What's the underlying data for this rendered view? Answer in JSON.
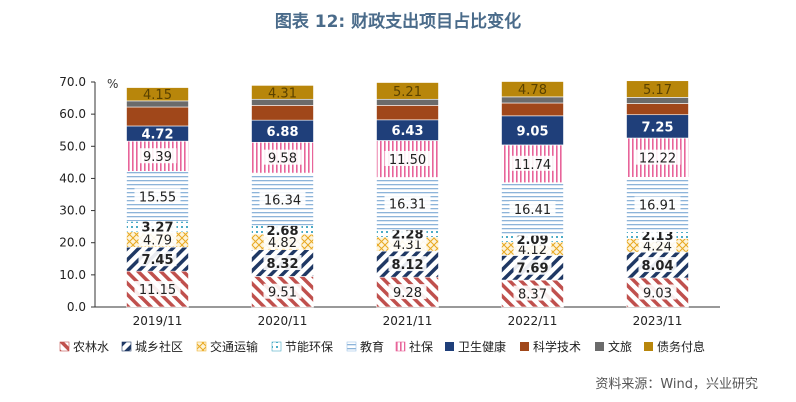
{
  "chart_data": {
    "type": "bar",
    "stacked": true,
    "title": "图表 12: 财政支出项目占比变化",
    "ylabel": "%",
    "ylim": [
      0,
      70
    ],
    "yticks": [
      "0.0",
      "10.0",
      "20.0",
      "30.0",
      "40.0",
      "50.0",
      "60.0",
      "70.0"
    ],
    "categories": [
      "2019/11",
      "2020/11",
      "2021/11",
      "2022/11",
      "2023/11"
    ],
    "legend_position": "bottom",
    "grid": false,
    "series": [
      {
        "name": "农林水",
        "color": "#c0504d",
        "pattern": "diag-red",
        "values": [
          11.15,
          9.51,
          9.28,
          8.37,
          9.03
        ],
        "labels": [
          "11.15",
          "9.51",
          "9.28",
          "8.37",
          "9.03"
        ]
      },
      {
        "name": "城乡社区",
        "color": "#1f3864",
        "pattern": "diag-navy",
        "values": [
          7.45,
          8.32,
          8.12,
          7.69,
          8.04
        ],
        "labels": [
          "7.45",
          "8.32",
          "8.12",
          "7.69",
          "8.04"
        ]
      },
      {
        "name": "交通运输",
        "color": "#f0b840",
        "pattern": "cross-gold",
        "values": [
          4.79,
          4.82,
          4.31,
          4.12,
          4.24
        ],
        "labels": [
          "4.79",
          "4.82",
          "4.31",
          "4.12",
          "4.24"
        ]
      },
      {
        "name": "节能环保",
        "color": "#4bacc6",
        "pattern": "dots-cyan",
        "values": [
          3.27,
          2.68,
          2.28,
          2.09,
          2.13
        ],
        "labels": [
          "3.27",
          "2.68",
          "2.28",
          "2.09",
          "2.13"
        ]
      },
      {
        "name": "教育",
        "color": "#9dc3e6",
        "pattern": "hlines-blue",
        "values": [
          15.55,
          16.34,
          16.31,
          16.41,
          16.91
        ],
        "labels": [
          "15.55",
          "16.34",
          "16.31",
          "16.41",
          "16.91"
        ]
      },
      {
        "name": "社保",
        "color": "#e8649a",
        "pattern": "vlines-pink",
        "values": [
          9.39,
          9.58,
          11.5,
          11.74,
          12.22
        ],
        "labels": [
          "9.39",
          "9.58",
          "11.50",
          "11.74",
          "12.22"
        ]
      },
      {
        "name": "卫生健康",
        "color": "#1f3f7a",
        "pattern": "solid",
        "values": [
          4.72,
          6.88,
          6.43,
          9.05,
          7.25
        ],
        "labels": [
          "4.72",
          "6.88",
          "6.43",
          "9.05",
          "7.25"
        ]
      },
      {
        "name": "科学技术",
        "color": "#a0471a",
        "pattern": "solid",
        "values": [
          5.9,
          4.6,
          4.5,
          4.0,
          3.5
        ],
        "labels": [
          "",
          "",
          "",
          "",
          ""
        ]
      },
      {
        "name": "文旅",
        "color": "#6b6b6b",
        "pattern": "solid",
        "values": [
          1.9,
          1.9,
          1.9,
          1.9,
          1.9
        ],
        "labels": [
          "",
          "",
          "",
          "",
          ""
        ]
      },
      {
        "name": "债务付息",
        "color": "#b8860b",
        "pattern": "solid",
        "values": [
          4.15,
          4.31,
          5.21,
          4.78,
          5.17
        ],
        "labels": [
          "4.15",
          "4.31",
          "5.21",
          "4.78",
          "5.17"
        ]
      }
    ]
  },
  "source": "资料来源：Wind，兴业研究"
}
